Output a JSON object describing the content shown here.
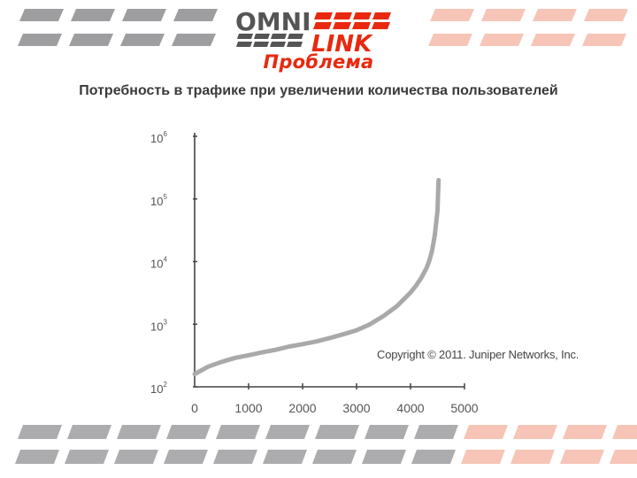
{
  "logo": {
    "top": "OMNI",
    "bottom": "LINK"
  },
  "slide": {
    "title": "Проблема",
    "subtitle": "Потребность в трафике при увеличении количества пользователей"
  },
  "copyright": "Copyright © 2011. Juniper Networks, Inc.",
  "colors": {
    "accent": "#e8290f",
    "deco_gray": "#9e9ea0",
    "deco_pink": "#f6c5b7",
    "curve": "#a9a9a9",
    "axis": "#444444"
  },
  "chart_data": {
    "type": "line",
    "title": "",
    "xlabel": "",
    "ylabel": "",
    "x_ticks": [
      0,
      1000,
      2000,
      3000,
      4000,
      5000
    ],
    "y_ticks": [
      {
        "base": "10",
        "exp": "2",
        "value": 100
      },
      {
        "base": "10",
        "exp": "3",
        "value": 1000
      },
      {
        "base": "10",
        "exp": "4",
        "value": 10000
      },
      {
        "base": "10",
        "exp": "5",
        "value": 100000
      },
      {
        "base": "10",
        "exp": "6",
        "value": 1000000
      }
    ],
    "xlim": [
      0,
      5000
    ],
    "ylim": [
      100,
      1000000
    ],
    "y_scale": "log",
    "grid": false,
    "series": [
      {
        "x": [
          0,
          250,
          500,
          750,
          1000,
          1250,
          1500,
          1750,
          2000,
          2250,
          2500,
          2750,
          3000,
          3250,
          3500,
          3750,
          4000,
          4100,
          4200,
          4300,
          4350,
          4400,
          4450,
          4500,
          4520
        ],
        "y": [
          160,
          210,
          250,
          290,
          320,
          355,
          390,
          440,
          480,
          530,
          600,
          690,
          800,
          1000,
          1350,
          1950,
          3200,
          4100,
          5500,
          8000,
          10500,
          15000,
          26000,
          65000,
          200000
        ]
      }
    ]
  }
}
